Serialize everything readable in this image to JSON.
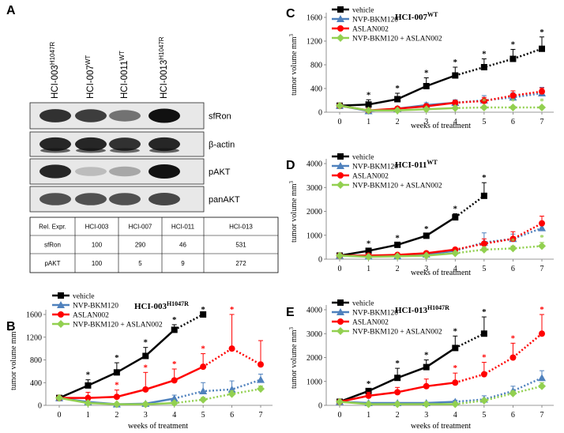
{
  "panel_a": {
    "label": "A",
    "lanes": [
      {
        "name": "HCI-003",
        "sup": "H1047R"
      },
      {
        "name": "HCI-007",
        "sup": "WT"
      },
      {
        "name": "HCI-0011",
        "sup": "WT"
      },
      {
        "name": "HCI-0013",
        "sup": "H1047R"
      }
    ],
    "blots": [
      "sfRon",
      "β-actin",
      "pAKT",
      "panAKT"
    ],
    "table": {
      "rows": [
        [
          "Rel. Expr.",
          "HCI-003",
          "HCI-007",
          "HCI-011",
          "HCI-013"
        ],
        [
          "sfRon",
          "100",
          "290",
          "46",
          "531"
        ],
        [
          "pAKT",
          "100",
          "5",
          "9",
          "272"
        ]
      ]
    }
  },
  "chart_data": [
    {
      "type": "line",
      "panel": "B",
      "title": "HCI-003",
      "title_superscript": "H1047R",
      "x_label": "weeks of treatment",
      "y_label": "tumor volume mm",
      "y_label_superscript": "3",
      "star_label": "*",
      "x": [
        0,
        1,
        2,
        3,
        4,
        5,
        6,
        7
      ],
      "xlim": [
        0,
        7
      ],
      "xticks": [
        0,
        1,
        2,
        3,
        4,
        5,
        6,
        7
      ],
      "ylim": [
        0,
        1600
      ],
      "yticks": [
        0,
        400,
        800,
        1200,
        1600
      ],
      "series": [
        {
          "name": "vehicle",
          "color": "#000000",
          "marker": "square",
          "dotted_from": 4,
          "values": [
            130,
            350,
            580,
            870,
            1330,
            1600,
            null,
            null
          ],
          "errors": [
            20,
            100,
            170,
            150,
            90,
            0,
            null,
            null
          ],
          "stars": [
            1,
            2,
            3,
            4,
            5
          ]
        },
        {
          "name": "NVP-BKM120",
          "color": "#4f81bd",
          "marker": "triangle",
          "dotted_from": 4,
          "values": [
            130,
            60,
            20,
            30,
            120,
            250,
            280,
            450
          ],
          "errors": [
            20,
            30,
            20,
            20,
            60,
            150,
            150,
            100
          ],
          "stars": []
        },
        {
          "name": "ASLAN002",
          "color": "#ff0000",
          "marker": "circle",
          "dotted_from": 5,
          "values": [
            130,
            130,
            150,
            280,
            440,
            680,
            1000,
            720
          ],
          "errors": [
            30,
            100,
            120,
            300,
            200,
            230,
            600,
            420
          ],
          "stars": [
            2,
            3,
            4,
            5,
            6
          ]
        },
        {
          "name": "NVP-BKM120 + ASLAN002",
          "color": "#92d050",
          "marker": "diamond",
          "dotted_from": 4,
          "values": [
            130,
            40,
            20,
            20,
            40,
            100,
            200,
            290
          ],
          "errors": [
            20,
            20,
            10,
            10,
            20,
            40,
            60,
            50
          ],
          "stars": []
        }
      ]
    },
    {
      "type": "line",
      "panel": "C",
      "title": "HCI-007",
      "title_superscript": "WT",
      "x_label": "weeks of treatment",
      "y_label": "tumor volume mm",
      "y_label_superscript": "3",
      "star_label": "*",
      "x": [
        0,
        1,
        2,
        3,
        4,
        5,
        6,
        7
      ],
      "xlim": [
        0,
        7
      ],
      "xticks": [
        0,
        1,
        2,
        3,
        4,
        5,
        6,
        7
      ],
      "ylim": [
        0,
        1600
      ],
      "yticks": [
        0,
        400,
        800,
        1200,
        1600
      ],
      "series": [
        {
          "name": "vehicle",
          "color": "#000000",
          "marker": "square",
          "dotted_from": 4,
          "values": [
            110,
            130,
            220,
            440,
            620,
            760,
            900,
            1070
          ],
          "errors": [
            30,
            80,
            100,
            140,
            140,
            140,
            160,
            200
          ],
          "stars": [
            1,
            2,
            3,
            4,
            5,
            6,
            7
          ]
        },
        {
          "name": "NVP-BKM120",
          "color": "#4f81bd",
          "marker": "triangle",
          "dotted_from": 4,
          "values": [
            110,
            20,
            60,
            120,
            160,
            200,
            250,
            320
          ],
          "errors": [
            20,
            20,
            30,
            40,
            50,
            80,
            80,
            100
          ],
          "stars": []
        },
        {
          "name": "ASLAN002",
          "color": "#ff0000",
          "marker": "circle",
          "dotted_from": 4,
          "values": [
            110,
            30,
            60,
            100,
            160,
            190,
            280,
            350
          ],
          "errors": [
            20,
            20,
            30,
            40,
            40,
            60,
            80,
            60
          ],
          "stars": []
        },
        {
          "name": "NVP-BKM120 + ASLAN002",
          "color": "#92d050",
          "marker": "diamond",
          "dotted_from": 4,
          "values": [
            110,
            30,
            30,
            50,
            70,
            80,
            80,
            80
          ],
          "errors": [
            20,
            10,
            10,
            10,
            20,
            20,
            20,
            20
          ],
          "stars": [
            5,
            6,
            7
          ]
        }
      ]
    },
    {
      "type": "line",
      "panel": "D",
      "title": "HCI-011",
      "title_superscript": "WT",
      "x_label": "weeks of treatment",
      "y_label": "tumor volume mm",
      "y_label_superscript": "3",
      "star_label": "*",
      "x": [
        0,
        1,
        2,
        3,
        4,
        5,
        6,
        7
      ],
      "xlim": [
        0,
        7
      ],
      "xticks": [
        0,
        1,
        2,
        3,
        4,
        5,
        6,
        7
      ],
      "ylim": [
        0,
        4000
      ],
      "yticks": [
        0,
        1000,
        2000,
        3000,
        4000
      ],
      "series": [
        {
          "name": "vehicle",
          "color": "#000000",
          "marker": "square",
          "dotted_from": 4,
          "values": [
            150,
            350,
            600,
            980,
            1750,
            2650,
            null,
            null
          ],
          "errors": [
            30,
            100,
            80,
            80,
            150,
            550,
            null,
            null
          ],
          "stars": [
            1,
            2,
            3,
            4,
            5
          ]
        },
        {
          "name": "NVP-BKM120",
          "color": "#4f81bd",
          "marker": "triangle",
          "dotted_from": 4,
          "values": [
            150,
            120,
            130,
            200,
            350,
            700,
            850,
            1300
          ],
          "errors": [
            30,
            30,
            30,
            50,
            80,
            400,
            200,
            200
          ],
          "stars": []
        },
        {
          "name": "ASLAN002",
          "color": "#ff0000",
          "marker": "circle",
          "dotted_from": 4,
          "values": [
            150,
            150,
            180,
            250,
            400,
            650,
            850,
            1500
          ],
          "errors": [
            30,
            40,
            40,
            60,
            60,
            200,
            300,
            300
          ],
          "stars": []
        },
        {
          "name": "NVP-BKM120 + ASLAN002",
          "color": "#92d050",
          "marker": "diamond",
          "dotted_from": 4,
          "values": [
            150,
            100,
            120,
            150,
            250,
            400,
            450,
            550
          ],
          "errors": [
            30,
            30,
            30,
            30,
            50,
            100,
            100,
            150
          ],
          "stars": [
            6,
            7
          ]
        }
      ]
    },
    {
      "type": "line",
      "panel": "E",
      "title": "HCI-013",
      "title_superscript": "H1047R",
      "x_label": "weeks of treatment",
      "y_label": "tumor volume mm",
      "y_label_superscript": "3",
      "star_label": "*",
      "x": [
        0,
        1,
        2,
        3,
        4,
        5,
        6,
        7
      ],
      "xlim": [
        0,
        7
      ],
      "xticks": [
        0,
        1,
        2,
        3,
        4,
        5,
        6,
        7
      ],
      "ylim": [
        0,
        4000
      ],
      "yticks": [
        0,
        1000,
        2000,
        3000,
        4000
      ],
      "series": [
        {
          "name": "vehicle",
          "color": "#000000",
          "marker": "square",
          "dotted_from": 4,
          "values": [
            150,
            600,
            1150,
            1600,
            2400,
            3000,
            null,
            null
          ],
          "errors": [
            30,
            100,
            400,
            300,
            500,
            700,
            null,
            null
          ],
          "stars": [
            1,
            2,
            3,
            4,
            5
          ]
        },
        {
          "name": "NVP-BKM120",
          "color": "#4f81bd",
          "marker": "triangle",
          "dotted_from": 4,
          "values": [
            150,
            100,
            100,
            100,
            150,
            250,
            600,
            1150
          ],
          "errors": [
            30,
            30,
            30,
            30,
            60,
            150,
            200,
            300
          ],
          "stars": []
        },
        {
          "name": "ASLAN002",
          "color": "#ff0000",
          "marker": "circle",
          "dotted_from": 4,
          "values": [
            150,
            400,
            550,
            800,
            950,
            1300,
            2000,
            3000
          ],
          "errors": [
            50,
            150,
            200,
            300,
            400,
            500,
            600,
            800
          ],
          "stars": [
            4,
            5,
            6,
            7
          ]
        },
        {
          "name": "NVP-BKM120 + ASLAN002",
          "color": "#92d050",
          "marker": "diamond",
          "dotted_from": 4,
          "values": [
            150,
            50,
            50,
            50,
            50,
            200,
            500,
            800
          ],
          "errors": [
            30,
            20,
            20,
            20,
            20,
            60,
            100,
            150
          ],
          "stars": []
        }
      ]
    }
  ]
}
